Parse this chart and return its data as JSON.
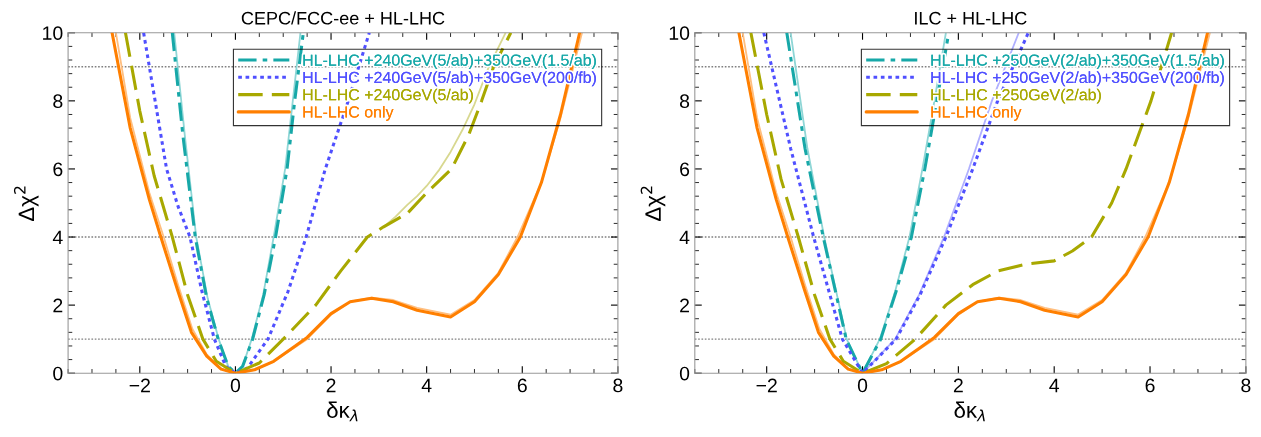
{
  "chart_data": [
    {
      "type": "line",
      "title": "CEPC/FCC-ee + HL-LHC",
      "xlabel": "δκ$_{λ}$",
      "ylabel": "Δχ$^{2}$",
      "xlim": [
        -3.5,
        8
      ],
      "ylim": [
        0,
        10
      ],
      "xticks": [
        {
          "value": -2,
          "label": "−2"
        },
        0,
        2,
        4,
        6,
        8
      ],
      "yticks": [
        0,
        2,
        4,
        6,
        8,
        10
      ],
      "grid": false,
      "legend": "top right",
      "ref_lines": [
        {
          "axis": "y",
          "value": 1,
          "color": "#808080",
          "line_style": "dotted"
        },
        {
          "axis": "y",
          "value": 4,
          "color": "#808080",
          "line_style": "dotted"
        },
        {
          "axis": "y",
          "value": 9,
          "color": "#808080",
          "line_style": "dotted"
        }
      ],
      "series": [
        {
          "name": "HL-LHC +240GeV(5/ab)+350GeV(1.5/ab)",
          "color": "#17a8a8",
          "line_style": "dashdot",
          "x": [
            -1.32,
            -1.1,
            -0.84,
            -0.6,
            -0.36,
            -0.15,
            0,
            0.15,
            0.36,
            0.6,
            0.84,
            1.08,
            1.24,
            1.42
          ],
          "values": [
            10,
            7,
            4,
            2.2,
            1,
            0.2,
            0,
            0.2,
            1,
            2.3,
            4,
            6,
            8,
            10
          ]
        },
        {
          "name": "HL-LHC +240GeV(5/ab)+350GeV(200/fb)",
          "color": "#5050ff",
          "line_style": "dotted",
          "x": [
            -1.92,
            -1.68,
            -1.44,
            -1.2,
            -0.95,
            -0.7,
            -0.44,
            -0.2,
            0,
            0.25,
            0.68,
            1.1,
            1.48,
            1.88,
            2.36,
            2.8
          ],
          "values": [
            10,
            8,
            6,
            4.9,
            4,
            2.4,
            1,
            0.2,
            0,
            0.15,
            1,
            2.4,
            4,
            6,
            8,
            10
          ]
        },
        {
          "name": "HL-LHC +240GeV(5/ab)",
          "color": "#a8a800",
          "line_style": "dashed",
          "x": [
            -2.3,
            -2.0,
            -1.7,
            -1.32,
            -1.0,
            -0.68,
            -0.4,
            0,
            0.5,
            1.0,
            1.68,
            2.2,
            2.76,
            3.1,
            3.6,
            4.0,
            4.52,
            4.88,
            5.15,
            5.4,
            5.76
          ],
          "values": [
            10,
            7.7,
            5.8,
            4,
            2.3,
            1,
            0.35,
            0,
            0.3,
            1,
            2,
            3,
            4,
            4.3,
            4.7,
            5.3,
            6,
            7,
            8,
            9,
            10
          ]
        },
        {
          "name": "HL-LHC only",
          "color": "#ff7f00",
          "line_style": "solid",
          "x": [
            -2.58,
            -2.2,
            -1.8,
            -1.56,
            -1.2,
            -0.92,
            -0.6,
            -0.3,
            0,
            0.4,
            0.8,
            1.2,
            1.5,
            2.0,
            2.4,
            2.85,
            3.3,
            3.8,
            4.5,
            5.0,
            5.5,
            5.96,
            6.4,
            6.8,
            7.2
          ],
          "values": [
            10,
            7.2,
            5.1,
            4,
            2.4,
            1.2,
            0.5,
            0.12,
            0,
            0.1,
            0.35,
            0.75,
            1.05,
            1.75,
            2.1,
            2.2,
            2.1,
            1.85,
            1.65,
            2.1,
            2.9,
            4,
            5.6,
            7.6,
            10
          ]
        },
        {
          "color": "#8fd6d6",
          "line_style": "solid",
          "x": [
            -1.28,
            -1.06,
            -0.82,
            -0.58,
            -0.35,
            -0.15,
            0,
            0.15,
            0.34,
            0.58,
            0.8,
            1.04,
            1.2,
            1.36
          ],
          "values": [
            10,
            7,
            4,
            2.2,
            1,
            0.2,
            0,
            0.2,
            1,
            2.3,
            4,
            6,
            8,
            10
          ]
        },
        {
          "color": "#d8d890",
          "line_style": "solid",
          "x": [
            3.1,
            3.35,
            3.6,
            3.8,
            4.0,
            4.25,
            4.5,
            4.75,
            5.0,
            5.3,
            5.65
          ],
          "values": [
            4.3,
            4.6,
            4.95,
            5.2,
            5.5,
            5.95,
            6.5,
            7.15,
            7.9,
            9,
            10
          ]
        },
        {
          "color": "#ffbf80",
          "line_style": "solid",
          "x": [
            -2.5,
            -2.2,
            -1.8,
            -1.5,
            -1.2,
            -0.9,
            -0.6,
            -0.3,
            0,
            0.4,
            0.8,
            1.2,
            1.5,
            2.0,
            2.4,
            2.85,
            3.3,
            3.8,
            4.5,
            5.0,
            5.5,
            5.9,
            6.4,
            6.8,
            7.25
          ],
          "values": [
            10,
            7.5,
            5.3,
            4,
            2.6,
            1.3,
            0.55,
            0.13,
            0,
            0.1,
            0.34,
            0.72,
            1.0,
            1.72,
            2.1,
            2.22,
            2.15,
            1.92,
            1.72,
            2.15,
            2.95,
            4,
            5.6,
            7.5,
            10
          ]
        }
      ]
    },
    {
      "type": "line",
      "title": "ILC + HL-LHC",
      "xlabel": "δκ$_{λ}$",
      "ylabel": "Δχ$^{2}$",
      "xlim": [
        -3.5,
        8
      ],
      "ylim": [
        0,
        10
      ],
      "xticks": [
        {
          "value": -2,
          "label": "−2"
        },
        0,
        2,
        4,
        6,
        8
      ],
      "yticks": [
        0,
        2,
        4,
        6,
        8,
        10
      ],
      "grid": false,
      "legend": "top right",
      "ref_lines": [
        {
          "axis": "y",
          "value": 1,
          "color": "#808080",
          "line_style": "dotted"
        },
        {
          "axis": "y",
          "value": 4,
          "color": "#808080",
          "line_style": "dotted"
        },
        {
          "axis": "y",
          "value": 9,
          "color": "#808080",
          "line_style": "dotted"
        }
      ],
      "series": [
        {
          "name": "HL-LHC +250GeV(2/ab)+350GeV(1.5/ab)",
          "color": "#17a8a8",
          "line_style": "dashdot",
          "x": [
            -1.58,
            -1.2,
            -0.82,
            -0.34,
            0,
            0.38,
            0.7,
            1.02,
            1.3,
            1.55,
            1.8
          ],
          "values": [
            10,
            6.6,
            4,
            1,
            0,
            1,
            2.4,
            4,
            6,
            8,
            10
          ]
        },
        {
          "name": "HL-LHC +250GeV(2/ab)+350GeV(200/fb)",
          "color": "#5050ff",
          "line_style": "dotted",
          "x": [
            -2.06,
            -1.5,
            -1.02,
            -0.42,
            0,
            0.7,
            1.2,
            1.74,
            2.3,
            2.82,
            3.46
          ],
          "values": [
            10,
            6.6,
            4,
            1,
            0,
            1,
            2.3,
            4,
            6,
            8,
            10
          ]
        },
        {
          "name": "HL-LHC +250GeV(2/ab)",
          "color": "#a8a800",
          "line_style": "dashed",
          "x": [
            -2.33,
            -2.0,
            -1.7,
            -1.34,
            -1.0,
            -0.68,
            -0.4,
            0,
            0.5,
            1.1,
            1.74,
            2.3,
            2.82,
            3.4,
            4.0,
            4.38,
            4.78,
            5.2,
            5.5,
            6.02,
            6.45
          ],
          "values": [
            10,
            7.6,
            5.7,
            4,
            2.3,
            1,
            0.35,
            0,
            0.28,
            1,
            2,
            2.6,
            3,
            3.2,
            3.3,
            3.59,
            4,
            5,
            6,
            8,
            10
          ]
        },
        {
          "name": "HL-LHC only",
          "color": "#ff7f00",
          "line_style": "solid",
          "x": [
            -2.58,
            -2.2,
            -1.8,
            -1.56,
            -1.2,
            -0.92,
            -0.6,
            -0.3,
            0,
            0.4,
            0.8,
            1.2,
            1.5,
            2.0,
            2.4,
            2.85,
            3.3,
            3.8,
            4.5,
            5.0,
            5.5,
            5.96,
            6.4,
            6.8,
            7.2
          ],
          "values": [
            10,
            7.2,
            5.1,
            4,
            2.4,
            1.2,
            0.5,
            0.12,
            0,
            0.1,
            0.35,
            0.75,
            1.05,
            1.75,
            2.1,
            2.2,
            2.1,
            1.85,
            1.65,
            2.1,
            2.9,
            4,
            5.6,
            7.6,
            10
          ]
        },
        {
          "color": "#8fd6d6",
          "line_style": "solid",
          "x": [
            -1.5,
            -1.15,
            -0.8,
            -0.33,
            0,
            0.36,
            0.68,
            0.98,
            1.25,
            1.5,
            1.74
          ],
          "values": [
            10,
            6.6,
            4,
            1,
            0,
            1,
            2.4,
            4,
            6,
            8,
            10
          ]
        },
        {
          "color": "#b0b0ff",
          "line_style": "solid",
          "x": [
            0,
            0.68,
            1.18,
            1.7,
            2.22,
            2.7,
            3.26
          ],
          "values": [
            0,
            1,
            2.3,
            4,
            6,
            8,
            10
          ]
        },
        {
          "color": "#ffbf80",
          "line_style": "solid",
          "x": [
            -2.5,
            -2.2,
            -1.8,
            -1.5,
            -1.2,
            -0.9,
            -0.6,
            -0.3,
            0,
            0.4,
            0.8,
            1.2,
            1.5,
            2.0,
            2.4,
            2.85,
            3.3,
            3.8,
            4.5,
            5.0,
            5.5,
            5.9,
            6.4,
            6.8,
            7.25
          ],
          "values": [
            10,
            7.5,
            5.3,
            4,
            2.6,
            1.3,
            0.55,
            0.13,
            0,
            0.1,
            0.34,
            0.72,
            1.0,
            1.72,
            2.1,
            2.22,
            2.15,
            1.92,
            1.72,
            2.15,
            2.95,
            4,
            5.6,
            7.5,
            10
          ]
        }
      ]
    }
  ]
}
